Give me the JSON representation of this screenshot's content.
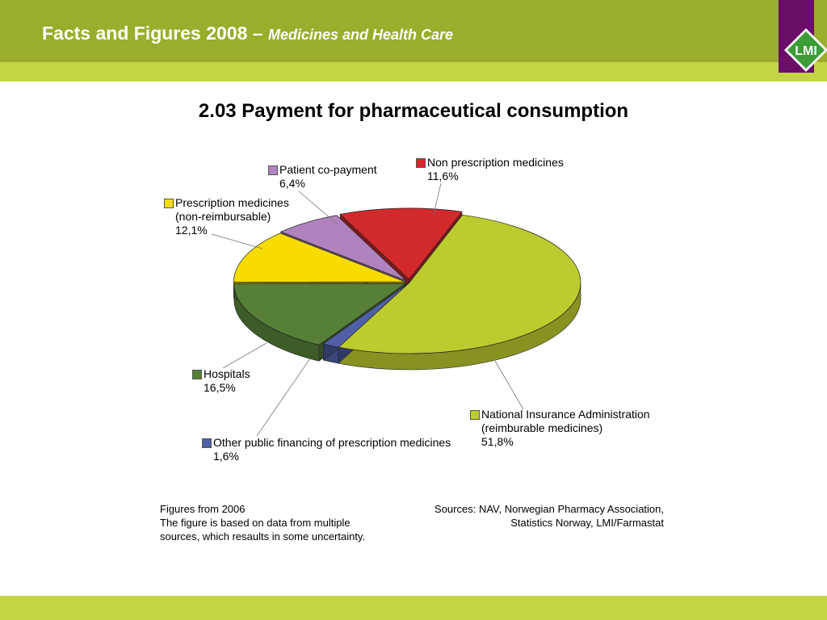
{
  "header": {
    "title_main": "Facts and Figures 2008 –",
    "title_sub": "Medicines and Health Care",
    "logo_text": "LMI"
  },
  "colors": {
    "header_dark": "#9aad2c",
    "header_light": "#c3d444",
    "logo_bg": "#6a0e66",
    "logo_green": "#3d9b38"
  },
  "chart_data": {
    "type": "pie",
    "title": "2.03 Payment for pharmaceutical consumption",
    "three_d": true,
    "slices": [
      {
        "name": "National Insurance Administration (reimburable medicines)",
        "name_lines": [
          "National Insurance Administration",
          "(reimburable medicines)"
        ],
        "value": 51.8,
        "label": "51,8%",
        "color": "#bccb2e"
      },
      {
        "name": "Other public financing of prescription medicines",
        "name_lines": [
          "Other public financing of prescription medicines"
        ],
        "value": 1.6,
        "label": "1,6%",
        "color": "#5060a8"
      },
      {
        "name": "Hospitals",
        "name_lines": [
          "Hospitals"
        ],
        "value": 16.5,
        "label": "16,5%",
        "color": "#568038"
      },
      {
        "name": "Prescription medicines (non-reimbursable)",
        "name_lines": [
          "Prescription medicines",
          "(non-reimbursable)"
        ],
        "value": 12.1,
        "label": "12,1%",
        "color": "#f7dc00"
      },
      {
        "name": "Patient co-payment",
        "name_lines": [
          "Patient co-payment"
        ],
        "value": 6.4,
        "label": "6,4%",
        "color": "#b083be"
      },
      {
        "name": "Non prescription medicines",
        "name_lines": [
          "Non prescription medicines"
        ],
        "value": 11.6,
        "label": "11,6%",
        "color": "#d2292d"
      }
    ]
  },
  "footnotes": {
    "left_lines": [
      "Figures from 2006",
      "The figure is based on data from multiple",
      "sources, which resaults in some uncertainty."
    ],
    "right_lines": [
      "Sources: NAV, Norwegian Pharmacy Association,",
      "Statistics Norway, LMI/Farmastat"
    ]
  }
}
